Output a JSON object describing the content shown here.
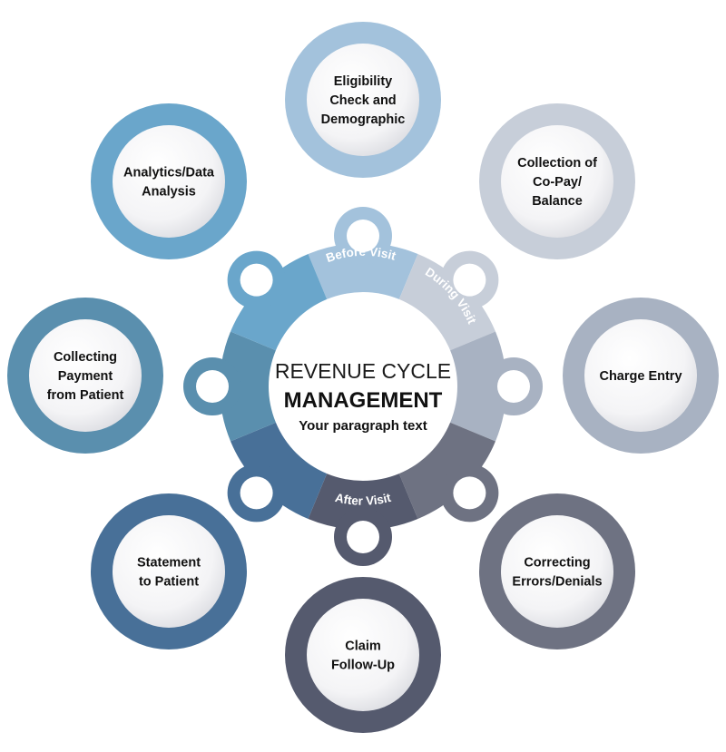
{
  "center": {
    "title": "REVENUE CYCLE",
    "main": "MANAGEMENT",
    "subtitle": "Your paragraph text"
  },
  "phases": [
    {
      "label": "Before Visit"
    },
    {
      "label": "During Visit"
    },
    {
      "label": "After  Visit"
    }
  ],
  "nodes": [
    {
      "lines": [
        "Eligibility",
        "Check and",
        "Demographic"
      ],
      "color": "#a3c2dc"
    },
    {
      "lines": [
        "Collection of",
        "Co-Pay/",
        "Balance"
      ],
      "color": "#c7ced9"
    },
    {
      "lines": [
        "Charge Entry"
      ],
      "color": "#a8b2c2"
    },
    {
      "lines": [
        "Correcting",
        "Errors/Denials"
      ],
      "color": "#6e7282"
    },
    {
      "lines": [
        "Claim",
        "Follow-Up"
      ],
      "color": "#555a6e"
    },
    {
      "lines": [
        "Statement",
        "to Patient"
      ],
      "color": "#487098"
    },
    {
      "lines": [
        "Collecting",
        "Payment",
        "from Patient"
      ],
      "color": "#5a8fae"
    },
    {
      "lines": [
        "Analytics/Data",
        "Analysis"
      ],
      "color": "#6aa6cb"
    }
  ],
  "wheel_colors": [
    "#a3c2dc",
    "#c7ced9",
    "#a8b2c2",
    "#6e7282",
    "#555a6e",
    "#487098",
    "#5a8fae",
    "#6aa6cb"
  ]
}
